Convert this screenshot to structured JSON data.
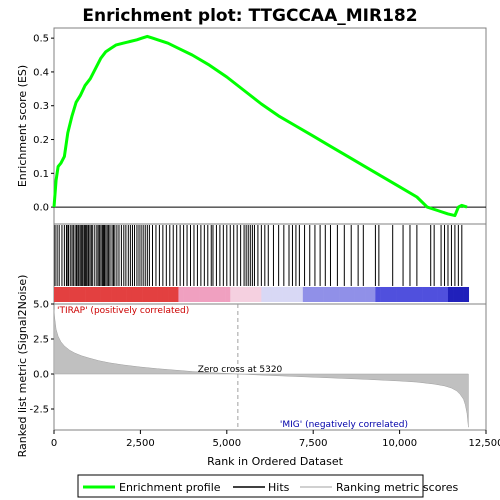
{
  "chart_data": {
    "type": "line",
    "title": "Enrichment plot: TTGCCAA_MIR182",
    "top_panel": {
      "ylabel": "Enrichment score (ES)",
      "yticks": [
        "0.0",
        "0.1",
        "0.2",
        "0.3",
        "0.4",
        "0.5"
      ],
      "ylim": [
        -0.05,
        0.53
      ],
      "series": [
        {
          "name": "Enrichment profile",
          "color": "#00ff00",
          "x": [
            0,
            60,
            120,
            200,
            300,
            400,
            520,
            640,
            760,
            900,
            1050,
            1200,
            1350,
            1500,
            1650,
            1800,
            2000,
            2200,
            2400,
            2550,
            2700,
            2850,
            3000,
            3300,
            3600,
            4000,
            4500,
            5000,
            5500,
            6000,
            6500,
            7000,
            7500,
            8000,
            8500,
            9000,
            9500,
            10000,
            10500,
            10800,
            11100,
            11400,
            11600,
            11700,
            11800,
            11950
          ],
          "y": [
            0.0,
            0.08,
            0.12,
            0.13,
            0.15,
            0.22,
            0.27,
            0.31,
            0.33,
            0.36,
            0.38,
            0.41,
            0.44,
            0.46,
            0.47,
            0.48,
            0.485,
            0.49,
            0.495,
            0.5,
            0.505,
            0.5,
            0.495,
            0.485,
            0.47,
            0.45,
            0.42,
            0.385,
            0.345,
            0.305,
            0.27,
            0.24,
            0.21,
            0.18,
            0.15,
            0.12,
            0.09,
            0.06,
            0.03,
            0.0,
            -0.01,
            -0.02,
            -0.025,
            0.0,
            0.005,
            0.0
          ]
        }
      ]
    },
    "hits_panel": {
      "legend_label": "Hits",
      "hit_ranks": [
        30,
        90,
        150,
        230,
        300,
        360,
        380,
        420,
        470,
        520,
        560,
        610,
        650,
        690,
        720,
        760,
        800,
        830,
        870,
        900,
        930,
        960,
        1000,
        1040,
        1080,
        1120,
        1180,
        1240,
        1280,
        1320,
        1360,
        1400,
        1430,
        1460,
        1500,
        1540,
        1580,
        1620,
        1680,
        1720,
        1760,
        1820,
        1880,
        1950,
        2020,
        2080,
        2150,
        2210,
        2270,
        2330,
        2400,
        2460,
        2520,
        2580,
        2640,
        2700,
        2760,
        2850,
        2950,
        3050,
        3150,
        3250,
        3350,
        3450,
        3550,
        3650,
        3750,
        3850,
        3950,
        4050,
        4150,
        4250,
        4350,
        4450,
        4550,
        4600,
        4700,
        4800,
        4900,
        5000,
        5100,
        5200,
        5300,
        5400,
        5500,
        5560,
        5620,
        5680,
        5740,
        5800,
        5900,
        6000,
        6100,
        6200,
        6350,
        6500,
        6650,
        6800,
        6900,
        7000,
        7100,
        7250,
        7400,
        7550,
        7700,
        7850,
        8000,
        8200,
        8400,
        8600,
        8800,
        8950,
        9300,
        9400,
        9800,
        10100,
        10300,
        10500,
        10900,
        11000,
        11200,
        11300,
        11400,
        11500,
        11600,
        11700,
        11800
      ]
    },
    "ranking_panel": {
      "ylabel": "Ranked list metric (Signal2Noise)",
      "yticks": [
        "-2.5",
        "0.0",
        "2.5",
        "5.0"
      ],
      "ylim": [
        -4.0,
        5.0
      ],
      "legend_label": "Ranking metric scores",
      "fill_color": "#c0c0c0",
      "x": [
        0,
        20,
        60,
        120,
        200,
        300,
        450,
        600,
        800,
        1000,
        1300,
        1600,
        2000,
        2500,
        3000,
        3500,
        4000,
        4500,
        5000,
        5320,
        6000,
        7000,
        8000,
        9000,
        10000,
        10500,
        11000,
        11300,
        11500,
        11650,
        11750,
        11850,
        11900,
        11950,
        11990
      ],
      "y": [
        4.6,
        4.0,
        3.2,
        2.7,
        2.3,
        2.0,
        1.7,
        1.5,
        1.3,
        1.15,
        0.95,
        0.8,
        0.65,
        0.5,
        0.38,
        0.28,
        0.18,
        0.1,
        0.04,
        0.0,
        -0.08,
        -0.18,
        -0.28,
        -0.38,
        -0.5,
        -0.58,
        -0.72,
        -0.85,
        -1.0,
        -1.2,
        -1.45,
        -1.8,
        -2.2,
        -2.8,
        -3.8
      ]
    },
    "xaxis": {
      "label": "Rank in Ordered Dataset",
      "xlim": [
        0,
        12500
      ],
      "ticks": [
        "0",
        "2,500",
        "5,000",
        "7,500",
        "10,000",
        "12,500"
      ],
      "tick_values": [
        0,
        2500,
        5000,
        7500,
        10000,
        12500
      ],
      "dataset_size": 12000
    },
    "annotations": {
      "zero_cross": "Zero cross at 5320",
      "zero_cross_rank": 5320,
      "positive": "'TIRAP' (positively correlated)",
      "negative": "'MIG' (negatively correlated)",
      "positive_color": "#cc0000",
      "negative_color": "#0000aa"
    },
    "legend": {
      "items": [
        "Enrichment profile",
        "Hits",
        "Ranking metric scores"
      ],
      "placement": "bottom"
    }
  }
}
